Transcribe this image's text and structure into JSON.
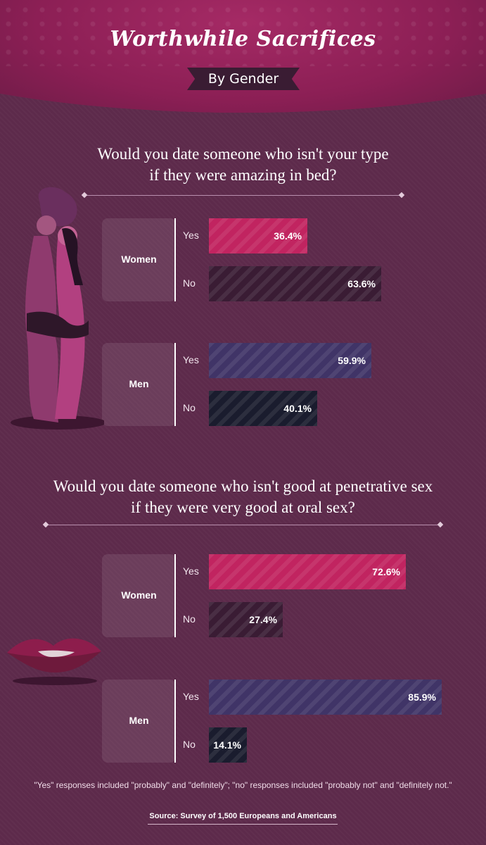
{
  "header": {
    "title": "Worthwhile Sacrifices",
    "subtitle": "By Gender"
  },
  "colors": {
    "women_yes": "#c12460",
    "women_no": "#3a1c34",
    "men_yes": "#403467",
    "men_no": "#1a1c2e"
  },
  "chart_data": [
    {
      "type": "bar",
      "title": "Would you date someone who isn't your type if they were amazing in bed?",
      "title_lines": [
        "Would you date someone who isn't your type",
        "if they were amazing in bed?"
      ],
      "unit": "%",
      "groups": [
        {
          "name": "Women",
          "responses": [
            {
              "label": "Yes",
              "value": 36.4,
              "value_label": "36.4%"
            },
            {
              "label": "No",
              "value": 63.6,
              "value_label": "63.6%"
            }
          ]
        },
        {
          "name": "Men",
          "responses": [
            {
              "label": "Yes",
              "value": 59.9,
              "value_label": "59.9%"
            },
            {
              "label": "No",
              "value": 40.1,
              "value_label": "40.1%"
            }
          ]
        }
      ]
    },
    {
      "type": "bar",
      "title": "Would you date someone who isn't good at penetrative sex if they were very good at oral sex?",
      "title_lines": [
        "Would you date someone who isn't good at penetrative sex",
        "if they were very good at oral sex?"
      ],
      "unit": "%",
      "groups": [
        {
          "name": "Women",
          "responses": [
            {
              "label": "Yes",
              "value": 72.6,
              "value_label": "72.6%"
            },
            {
              "label": "No",
              "value": 27.4,
              "value_label": "27.4%"
            }
          ]
        },
        {
          "name": "Men",
          "responses": [
            {
              "label": "Yes",
              "value": 85.9,
              "value_label": "85.9%"
            },
            {
              "label": "No",
              "value": 14.1,
              "value_label": "14.1%"
            }
          ]
        }
      ]
    }
  ],
  "footnote": "\"Yes\" responses included \"probably\" and \"definitely\"; \"no\" responses included \"probably not\" and \"definitely not.\"",
  "source": "Source: Survey of 1,500 Europeans and Americans"
}
